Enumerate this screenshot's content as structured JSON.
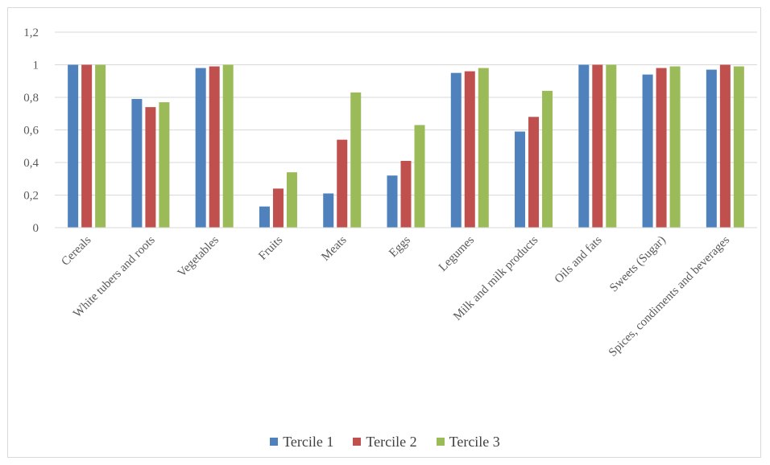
{
  "chart_data": {
    "type": "bar",
    "title": "",
    "xlabel": "",
    "ylabel": "",
    "ylim": [
      0,
      1.2
    ],
    "yticks": [
      "0",
      "0,2",
      "0,4",
      "0,6",
      "0,8",
      "1",
      "1,2"
    ],
    "grid": true,
    "legend": "bottom",
    "categories": [
      "Cereals",
      "White tubers and roots",
      "Vegetables",
      "Fruits",
      "Meats",
      "Eggs",
      "Legumes",
      "Milk and milk products",
      "Oils and fats",
      "Sweets (Sugar)",
      "Spices, condiments and beverages"
    ],
    "series": [
      {
        "name": "Tercile 1",
        "color": "#4f81bd",
        "values": [
          1.0,
          0.79,
          0.98,
          0.13,
          0.21,
          0.32,
          0.95,
          0.59,
          1.0,
          0.94,
          0.97
        ]
      },
      {
        "name": "Tercile 2",
        "color": "#c0504d",
        "values": [
          1.0,
          0.74,
          0.99,
          0.24,
          0.54,
          0.41,
          0.96,
          0.68,
          1.0,
          0.98,
          1.0
        ]
      },
      {
        "name": "Tercile 3",
        "color": "#9bbb59",
        "values": [
          1.0,
          0.77,
          1.0,
          0.34,
          0.83,
          0.63,
          0.98,
          0.84,
          1.0,
          0.99,
          0.99
        ]
      }
    ]
  }
}
